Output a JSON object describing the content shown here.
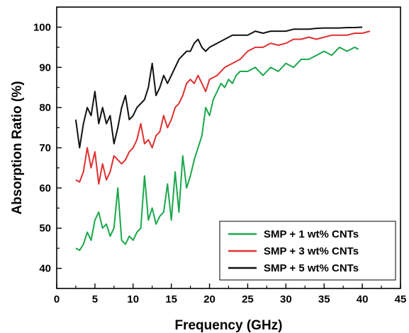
{
  "chart_data": {
    "type": "line",
    "title": "",
    "xlabel": "Frequency (GHz)",
    "ylabel": "Absorption Ratio (%)",
    "xlim": [
      0,
      45
    ],
    "ylim": [
      35,
      105
    ],
    "xticks": [
      0,
      5,
      10,
      15,
      20,
      25,
      30,
      35,
      40,
      45
    ],
    "yticks": [
      40,
      50,
      60,
      70,
      80,
      90,
      100
    ],
    "grid": false,
    "legend_position": "bottom-right",
    "series": [
      {
        "name": "SMP + 1 wt% CNTs",
        "color": "#1aa84a",
        "x": [
          2.5,
          3.0,
          3.5,
          4.0,
          4.5,
          5.0,
          5.5,
          6.0,
          6.5,
          7.0,
          7.5,
          8.0,
          8.5,
          9.0,
          9.5,
          10.0,
          10.5,
          11.0,
          11.5,
          12.0,
          12.5,
          13.0,
          13.5,
          14.0,
          14.5,
          15.0,
          15.5,
          16.0,
          16.5,
          17.0,
          17.5,
          18.0,
          18.5,
          19.0,
          19.5,
          20.0,
          20.5,
          21.0,
          21.5,
          22.0,
          22.5,
          23.0,
          23.5,
          24.0,
          25.0,
          26.0,
          27.0,
          28.0,
          29.0,
          30.0,
          31.0,
          32.0,
          33.0,
          34.0,
          35.0,
          36.0,
          37.0,
          38.0,
          39.0,
          39.5
        ],
        "y": [
          45,
          44.5,
          46,
          49,
          47,
          52,
          54,
          50,
          51,
          48,
          50,
          60,
          47,
          46,
          48,
          47,
          49,
          50,
          63,
          52,
          55,
          51,
          53,
          54,
          61,
          52,
          64,
          54,
          68,
          60,
          63,
          67,
          70,
          73,
          80,
          78,
          82,
          84,
          86,
          85,
          87,
          86,
          88,
          89,
          89,
          90,
          88,
          90,
          89,
          91,
          90,
          92,
          92,
          93,
          94,
          93,
          95,
          94,
          95,
          94.5
        ]
      },
      {
        "name": "SMP + 3 wt% CNTs",
        "color": "#e03030",
        "x": [
          2.5,
          3.0,
          3.5,
          4.0,
          4.5,
          5.0,
          5.5,
          6.0,
          6.5,
          7.0,
          7.5,
          8.0,
          8.5,
          9.0,
          9.5,
          10.0,
          10.5,
          11.0,
          11.5,
          12.0,
          12.5,
          13.0,
          13.5,
          14.0,
          14.5,
          15.0,
          15.5,
          16.0,
          16.5,
          17.0,
          17.5,
          18.0,
          18.5,
          19.0,
          19.5,
          20.0,
          21.0,
          22.0,
          23.0,
          24.0,
          25.0,
          26.0,
          27.0,
          28.0,
          29.0,
          30.0,
          31.0,
          32.0,
          33.0,
          34.0,
          35.0,
          36.0,
          37.0,
          38.0,
          39.0,
          40.0,
          41.0
        ],
        "y": [
          62,
          61.5,
          64,
          70,
          65,
          69,
          61,
          66,
          62,
          64,
          68,
          67,
          66,
          67,
          69,
          70,
          72,
          76,
          71,
          72,
          70,
          73,
          74,
          78,
          75,
          77,
          80,
          81,
          83,
          86,
          87,
          86,
          88,
          86,
          84,
          87,
          88,
          90,
          91,
          92,
          94,
          95,
          95,
          96,
          95.5,
          96,
          97,
          97,
          97.5,
          97,
          97.5,
          98,
          98,
          98,
          98.5,
          98.5,
          99
        ]
      },
      {
        "name": "SMP + 5 wt% CNTs",
        "color": "#111111",
        "x": [
          2.5,
          3.0,
          3.5,
          4.0,
          4.5,
          5.0,
          5.5,
          6.0,
          6.5,
          7.0,
          7.5,
          8.0,
          8.5,
          9.0,
          9.5,
          10.0,
          10.5,
          11.0,
          11.5,
          12.0,
          12.5,
          13.0,
          13.5,
          14.0,
          14.5,
          15.0,
          15.5,
          16.0,
          16.5,
          17.0,
          17.5,
          18.0,
          18.5,
          19.0,
          19.5,
          20.0,
          21.0,
          22.0,
          23.0,
          24.0,
          25.0,
          26.0,
          27.0,
          28.0,
          29.0,
          30.0,
          31.0,
          32.0,
          33.0,
          34.0,
          35.0,
          36.0,
          37.0,
          38.0,
          39.0,
          40.0
        ],
        "y": [
          77,
          70,
          76,
          80,
          78,
          84,
          76,
          80,
          76,
          78,
          71,
          75,
          80,
          83,
          77,
          78,
          80,
          81,
          82,
          85,
          91,
          83,
          85,
          88,
          86,
          88,
          90,
          92,
          93,
          94,
          94,
          96,
          97,
          95,
          94,
          95,
          96,
          97,
          98,
          98,
          98,
          99,
          98.5,
          99,
          99,
          99,
          99.5,
          99.5,
          99.5,
          99.7,
          99.8,
          99.8,
          99.8,
          99.9,
          99.9,
          100
        ]
      }
    ]
  }
}
